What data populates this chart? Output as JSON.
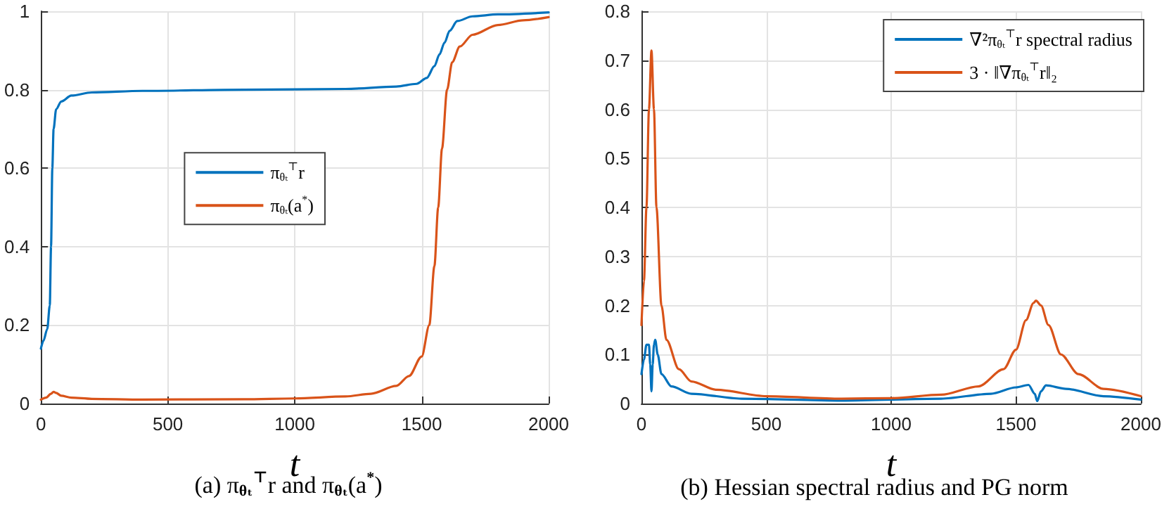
{
  "chart_data": [
    {
      "type": "line",
      "title": "(a) π$_{θₜ}$$^{⊤}$r and π$_{θₜ}$(a$^{*}$)",
      "xlabel": "t",
      "xlim": [
        0,
        2000
      ],
      "xticks": [
        0,
        500,
        1000,
        1500,
        2000
      ],
      "ylim": [
        0,
        1
      ],
      "yticks": [
        0,
        0.2,
        0.4,
        0.6,
        0.8,
        1
      ],
      "grid": true,
      "legend": "center",
      "series": [
        {
          "name": "π$_{θₜ}$$^{⊤}$r",
          "color": "#0072bd",
          "x": [
            0,
            10,
            25,
            35,
            40,
            45,
            50,
            60,
            80,
            120,
            200,
            400,
            800,
            1200,
            1400,
            1480,
            1520,
            1550,
            1570,
            1590,
            1610,
            1640,
            1700,
            1800,
            2000
          ],
          "values": [
            0.14,
            0.16,
            0.19,
            0.25,
            0.4,
            0.6,
            0.7,
            0.75,
            0.77,
            0.785,
            0.793,
            0.797,
            0.8,
            0.802,
            0.808,
            0.815,
            0.83,
            0.86,
            0.89,
            0.92,
            0.95,
            0.975,
            0.987,
            0.992,
            0.997
          ]
        },
        {
          "name": "π$_{θₜ}$(a$^{*}$)",
          "color": "#d95319",
          "x": [
            0,
            20,
            40,
            50,
            60,
            80,
            120,
            200,
            400,
            800,
            1000,
            1200,
            1300,
            1400,
            1450,
            1500,
            1530,
            1550,
            1565,
            1580,
            1600,
            1620,
            1650,
            1700,
            1800,
            1900,
            2000
          ],
          "values": [
            0.01,
            0.015,
            0.025,
            0.03,
            0.027,
            0.02,
            0.015,
            0.012,
            0.01,
            0.011,
            0.013,
            0.018,
            0.025,
            0.045,
            0.07,
            0.12,
            0.2,
            0.35,
            0.5,
            0.65,
            0.8,
            0.87,
            0.91,
            0.94,
            0.965,
            0.977,
            0.985
          ]
        }
      ]
    },
    {
      "type": "line",
      "title": "(b) Hessian spectral radius and PG norm",
      "xlabel": "t",
      "xlim": [
        0,
        2000
      ],
      "xticks": [
        0,
        500,
        1000,
        1500,
        2000
      ],
      "ylim": [
        0,
        0.8
      ],
      "yticks": [
        0,
        0.1,
        0.2,
        0.3,
        0.4,
        0.5,
        0.6,
        0.7,
        0.8
      ],
      "grid": true,
      "legend": "top right",
      "series": [
        {
          "name": "∇²π$_{θₜ}$$^{⊤}$r spectral radius",
          "color": "#0072bd",
          "x": [
            0,
            10,
            20,
            30,
            35,
            40,
            45,
            50,
            55,
            65,
            80,
            120,
            200,
            400,
            800,
            1200,
            1400,
            1500,
            1550,
            1575,
            1585,
            1600,
            1620,
            1700,
            1850,
            2000
          ],
          "values": [
            0.06,
            0.09,
            0.12,
            0.12,
            0.08,
            0.025,
            0.08,
            0.12,
            0.13,
            0.1,
            0.06,
            0.035,
            0.02,
            0.01,
            0.006,
            0.01,
            0.02,
            0.033,
            0.038,
            0.02,
            0.005,
            0.025,
            0.037,
            0.03,
            0.015,
            0.008
          ]
        },
        {
          "name": "3 · ‖∇π$_{θₜ}$$^{⊤}$r‖₂",
          "color": "#d95319",
          "x": [
            0,
            10,
            20,
            30,
            40,
            50,
            60,
            80,
            100,
            150,
            200,
            300,
            500,
            800,
            1000,
            1200,
            1350,
            1450,
            1500,
            1540,
            1570,
            1580,
            1600,
            1630,
            1680,
            1750,
            1850,
            2000
          ],
          "values": [
            0.16,
            0.25,
            0.4,
            0.6,
            0.72,
            0.6,
            0.4,
            0.2,
            0.13,
            0.07,
            0.045,
            0.028,
            0.015,
            0.01,
            0.011,
            0.018,
            0.035,
            0.07,
            0.11,
            0.17,
            0.205,
            0.21,
            0.2,
            0.16,
            0.1,
            0.06,
            0.03,
            0.015
          ]
        }
      ]
    }
  ]
}
